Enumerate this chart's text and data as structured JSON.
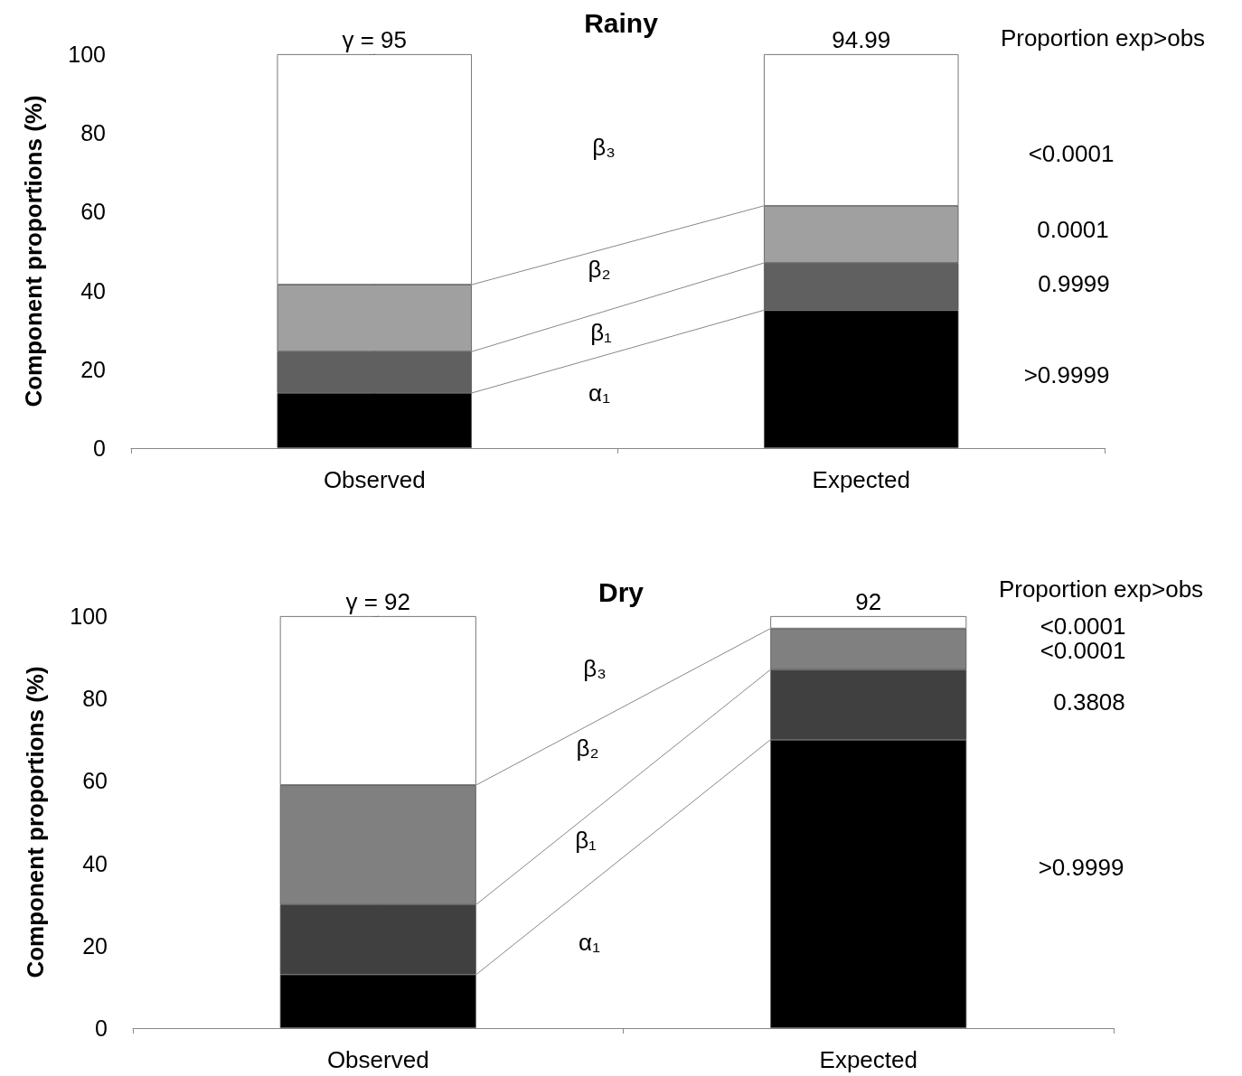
{
  "chart_data": [
    {
      "type": "bar",
      "stacked": true,
      "title": "Rainy",
      "ylabel": "Component proportions (%)",
      "categories": [
        "Observed",
        "Expected"
      ],
      "ylim": [
        0,
        100
      ],
      "yticks": [
        0,
        20,
        40,
        60,
        80,
        100
      ],
      "series": [
        {
          "color": "#000000",
          "values": [
            14,
            35
          ]
        },
        {
          "color": "#606060",
          "values": [
            10.5,
            12
          ]
        },
        {
          "color": "#a0a0a0",
          "values": [
            17,
            14.5
          ]
        },
        {
          "color": "#ffffff",
          "values": [
            58.5,
            38.5
          ]
        }
      ],
      "annotations": [
        {
          "text": "γ = 95",
          "x": "Observed",
          "y": 100
        },
        {
          "text": "94.99",
          "x": "Expected",
          "y": 100
        },
        "Proportion exp>obs",
        "<0.0001",
        "0.0001",
        "0.9999",
        ">0.9999",
        "β₃",
        "β₂",
        "β₁",
        "α₁"
      ]
    },
    {
      "type": "bar",
      "stacked": true,
      "title": "Dry",
      "ylabel": "Component proportions (%)",
      "categories": [
        "Observed",
        "Expected"
      ],
      "ylim": [
        0,
        100
      ],
      "yticks": [
        0,
        20,
        40,
        60,
        80,
        100
      ],
      "series": [
        {
          "color": "#000000",
          "values": [
            13,
            70
          ]
        },
        {
          "color": "#404040",
          "values": [
            17,
            17
          ]
        },
        {
          "color": "#808080",
          "values": [
            29,
            10
          ]
        },
        {
          "color": "#ffffff",
          "values": [
            41,
            3
          ]
        }
      ],
      "annotations": [
        {
          "text": "γ = 92",
          "x": "Observed",
          "y": 100
        },
        {
          "text": "92",
          "x": "Expected",
          "y": 100
        },
        "Proportion exp>obs",
        "<0.0001",
        "<0.0001",
        "0.3808",
        ">0.9999",
        "β₃",
        "β₂",
        "β₁",
        "α₁"
      ]
    }
  ]
}
